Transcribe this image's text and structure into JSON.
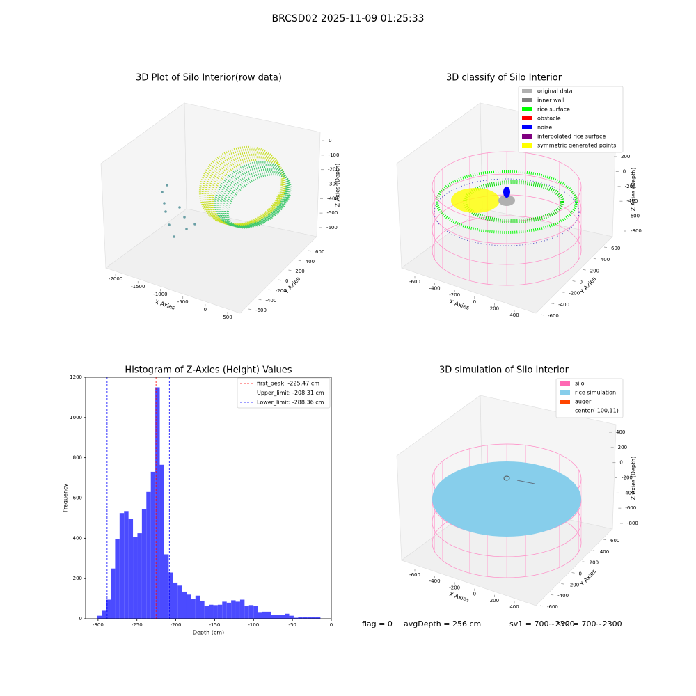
{
  "title": "BRCSD02 2025-11-09 01:25:33",
  "chart_data": [
    {
      "type": "scatter3d",
      "title": "3D Plot of Silo Interior(row data)",
      "xlabel": "X Axies",
      "ylabel": "Y Axies",
      "zlabel": "Z Axies (Depth)",
      "xlim": [
        -2250,
        650
      ],
      "xticks": [
        -2000,
        -1500,
        -1000,
        -500,
        0,
        500
      ],
      "ylim": [
        -700,
        700
      ],
      "yticks": [
        -600,
        -400,
        -200,
        0,
        200,
        400,
        600
      ],
      "zlim": [
        -680,
        40
      ],
      "zticks": [
        0,
        -100,
        -200,
        -300,
        -400,
        -500,
        -600
      ]
    },
    {
      "type": "scatter3d",
      "title": "3D classify of Silo Interior",
      "xlabel": "X Axies",
      "ylabel": "Y Axies",
      "zlabel": "Z Axies (Depth)",
      "xlim": [
        -700,
        500
      ],
      "xticks": [
        -600,
        -400,
        -200,
        0,
        200,
        400
      ],
      "ylim": [
        -700,
        700
      ],
      "yticks": [
        -600,
        -400,
        -200,
        0,
        200,
        400,
        600
      ],
      "zlim": [
        -900,
        300
      ],
      "zticks": [
        200,
        0,
        -200,
        -400,
        -600,
        -800
      ],
      "legend": [
        {
          "name": "original data",
          "color": "#b0b0b0"
        },
        {
          "name": "inner wall",
          "color": "#808080"
        },
        {
          "name": "rice surface",
          "color": "#00ff00"
        },
        {
          "name": "obstacle",
          "color": "#ff0000"
        },
        {
          "name": "noise",
          "color": "#0000ff"
        },
        {
          "name": "interpolated rice surface",
          "color": "#800080"
        },
        {
          "name": "symmetric generated points",
          "color": "#ffff00"
        }
      ]
    },
    {
      "type": "histogram",
      "title": "Histogram of Z-Axies (Height) Values",
      "xlabel": "Depth (cm)",
      "ylabel": "Frequency",
      "color": "#4b4bff",
      "bins": [
        -301.0,
        -295.26,
        -289.52,
        -283.78,
        -278.04,
        -272.3,
        -266.56,
        -260.82,
        -255.08,
        -249.34,
        -243.6,
        -237.86,
        -232.12,
        -226.38,
        -220.64,
        -214.9,
        -209.16,
        -203.42,
        -197.68,
        -191.94,
        -186.2,
        -180.46,
        -174.72,
        -168.98,
        -163.24,
        -157.5,
        -151.76,
        -146.02,
        -140.28,
        -134.54,
        -128.8,
        -123.06,
        -117.32,
        -111.58,
        -105.84,
        -100.1,
        -94.36,
        -88.62,
        -82.88,
        -77.14,
        -71.4,
        -65.66,
        -59.92,
        -54.18,
        -48.44,
        -42.7,
        -36.96,
        -31.22,
        -25.48,
        -19.74,
        -14.0
      ],
      "values": [
        15,
        40,
        95,
        250,
        395,
        525,
        535,
        495,
        405,
        425,
        545,
        630,
        730,
        1150,
        765,
        320,
        230,
        180,
        165,
        135,
        120,
        100,
        115,
        90,
        65,
        70,
        68,
        70,
        85,
        80,
        92,
        85,
        95,
        65,
        68,
        65,
        30,
        35,
        35,
        20,
        18,
        20,
        25,
        15,
        5,
        10,
        10,
        10,
        8,
        10
      ],
      "xlim": [
        -316,
        0
      ],
      "xticks": [
        -300,
        -250,
        -200,
        -150,
        -100,
        -50,
        0
      ],
      "ylim": [
        0,
        1200
      ],
      "yticks": [
        0,
        200,
        400,
        600,
        800,
        1000,
        1200
      ],
      "lines": [
        {
          "value": -225.47,
          "label": "first_peak: -225.47 cm",
          "color": "#ff0000"
        },
        {
          "value": -208.31,
          "label": "Upper_limit: -208.31 cm",
          "color": "#0000ff"
        },
        {
          "value": -288.36,
          "label": "Lower_limit: -288.36 cm",
          "color": "#0000ff"
        }
      ]
    },
    {
      "type": "scatter3d",
      "title": "3D simulation of Silo Interior",
      "xlabel": "X Axies",
      "ylabel": "Y Axies",
      "zlabel": "Z Axies (Depth)",
      "xlim": [
        -700,
        500
      ],
      "xticks": [
        -600,
        -400,
        -200,
        0,
        200,
        400
      ],
      "ylim": [
        -700,
        700
      ],
      "yticks": [
        -600,
        -400,
        -200,
        0,
        200,
        400,
        600
      ],
      "zlim": [
        -900,
        500
      ],
      "zticks": [
        400,
        200,
        0,
        -200,
        -400,
        -600,
        -800
      ],
      "legend": [
        {
          "name": "silo",
          "color": "#ff69b4"
        },
        {
          "name": "rice simulation",
          "color": "#87ceeb"
        },
        {
          "name": "auger",
          "color": "#ff4500"
        },
        {
          "name": "center(-100,11)",
          "color": null
        }
      ]
    }
  ],
  "footer": {
    "flag": "flag = 0",
    "avg": "avgDepth = 256 cm",
    "sv1": "sv1 = 700~2300",
    "sv2": "sv2 = 700~2300"
  }
}
